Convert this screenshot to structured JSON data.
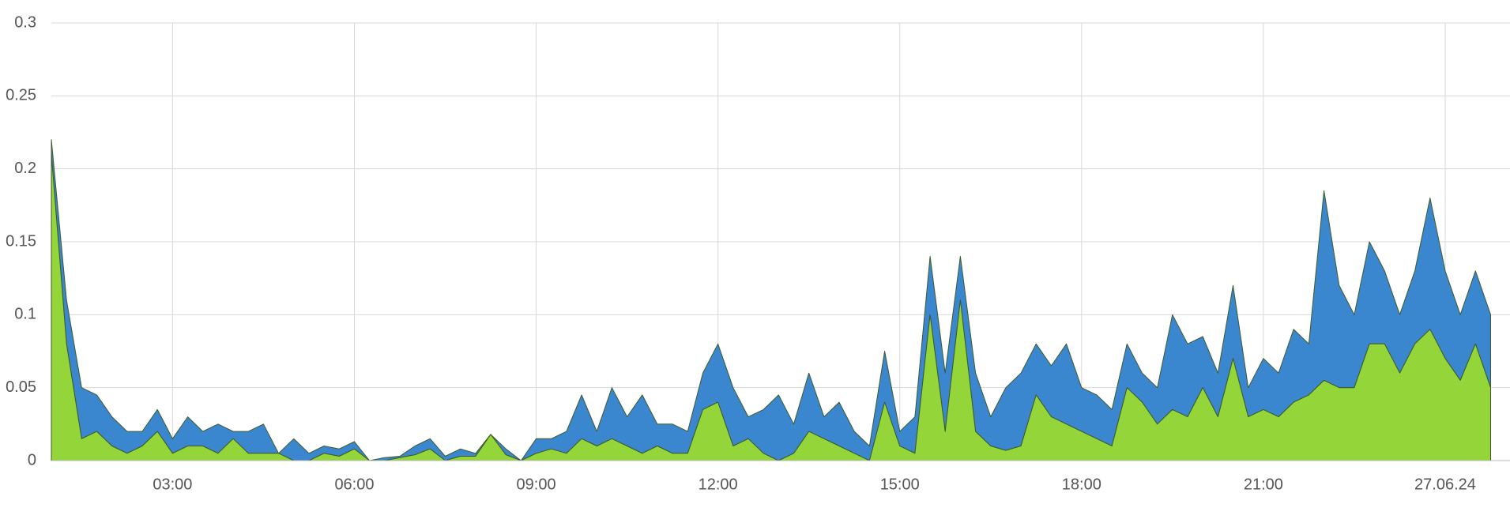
{
  "chart_data": {
    "type": "area",
    "stacked": true,
    "grid": true,
    "x": [
      1,
      1.25,
      1.5,
      1.75,
      2,
      2.25,
      2.5,
      2.75,
      3,
      3.25,
      3.5,
      3.75,
      4,
      4.25,
      4.5,
      4.75,
      5,
      5.25,
      5.5,
      5.75,
      6,
      6.25,
      6.5,
      6.75,
      7,
      7.25,
      7.5,
      7.75,
      8,
      8.25,
      8.5,
      8.75,
      9,
      9.25,
      9.5,
      9.75,
      10,
      10.25,
      10.5,
      10.75,
      11,
      11.25,
      11.5,
      11.75,
      12,
      12.25,
      12.5,
      12.75,
      13,
      13.25,
      13.5,
      13.75,
      14,
      14.25,
      14.5,
      14.75,
      15,
      15.25,
      15.5,
      15.75,
      16,
      16.25,
      16.5,
      16.75,
      17,
      17.25,
      17.5,
      17.75,
      18,
      18.25,
      18.5,
      18.75,
      19,
      19.25,
      19.5,
      19.75,
      20,
      20.25,
      20.5,
      20.75,
      21,
      21.25,
      21.5,
      21.75,
      22,
      22.25,
      22.5,
      22.75,
      23,
      23.25,
      23.5,
      23.75,
      24,
      24.25,
      24.5,
      24.75
    ],
    "series": [
      {
        "color": "#94d63a",
        "values": [
          0.21,
          0.08,
          0.015,
          0.02,
          0.01,
          0.005,
          0.01,
          0.02,
          0.005,
          0.01,
          0.01,
          0.005,
          0.015,
          0.005,
          0.005,
          0.005,
          0,
          0,
          0.005,
          0.003,
          0.008,
          0,
          0,
          0.002,
          0.004,
          0.008,
          0,
          0.003,
          0.003,
          0.018,
          0.004,
          0,
          0.005,
          0.008,
          0.005,
          0.015,
          0.01,
          0.015,
          0.01,
          0.005,
          0.01,
          0.005,
          0.005,
          0.035,
          0.04,
          0.01,
          0.015,
          0.005,
          0,
          0.005,
          0.02,
          0.015,
          0.01,
          0.005,
          0,
          0.04,
          0.01,
          0.005,
          0.1,
          0.02,
          0.11,
          0.02,
          0.01,
          0.007,
          0.01,
          0.045,
          0.03,
          0.025,
          0.02,
          0.015,
          0.01,
          0.05,
          0.04,
          0.025,
          0.035,
          0.03,
          0.05,
          0.03,
          0.07,
          0.03,
          0.035,
          0.03,
          0.04,
          0.045,
          0.055,
          0.05,
          0.05,
          0.08,
          0.08,
          0.06,
          0.08,
          0.09,
          0.07,
          0.055,
          0.08,
          0.05
        ]
      },
      {
        "color": "#3a87d0",
        "values": [
          0.01,
          0.03,
          0.035,
          0.025,
          0.02,
          0.015,
          0.01,
          0.015,
          0.01,
          0.02,
          0.01,
          0.02,
          0.005,
          0.015,
          0.02,
          0,
          0.015,
          0.005,
          0.005,
          0.005,
          0.005,
          0,
          0.002,
          0.001,
          0.006,
          0.007,
          0.003,
          0.005,
          0.002,
          0,
          0.004,
          0,
          0.01,
          0.007,
          0.015,
          0.03,
          0.01,
          0.035,
          0.02,
          0.04,
          0.015,
          0.02,
          0.015,
          0.025,
          0.04,
          0.04,
          0.015,
          0.03,
          0.045,
          0.02,
          0.04,
          0.015,
          0.03,
          0.015,
          0.01,
          0.035,
          0.01,
          0.025,
          0.04,
          0.04,
          0.03,
          0.04,
          0.02,
          0.043,
          0.05,
          0.035,
          0.035,
          0.055,
          0.03,
          0.03,
          0.025,
          0.03,
          0.02,
          0.025,
          0.065,
          0.05,
          0.035,
          0.03,
          0.05,
          0.02,
          0.035,
          0.03,
          0.05,
          0.035,
          0.13,
          0.07,
          0.05,
          0.07,
          0.05,
          0.04,
          0.05,
          0.09,
          0.06,
          0.045,
          0.05,
          0.05
        ]
      }
    ],
    "xlim": [
      1,
      24.9
    ],
    "xticks": [
      {
        "value": 3,
        "label": "03:00"
      },
      {
        "value": 6,
        "label": "06:00"
      },
      {
        "value": 9,
        "label": "09:00"
      },
      {
        "value": 12,
        "label": "12:00"
      },
      {
        "value": 15,
        "label": "15:00"
      },
      {
        "value": 18,
        "label": "18:00"
      },
      {
        "value": 21,
        "label": "21:00"
      },
      {
        "value": 24,
        "label": "27.06.24"
      }
    ],
    "ylim": [
      0,
      0.3
    ],
    "yticks": [
      0,
      0.05,
      0.1,
      0.15,
      0.2,
      0.25,
      0.3
    ]
  }
}
